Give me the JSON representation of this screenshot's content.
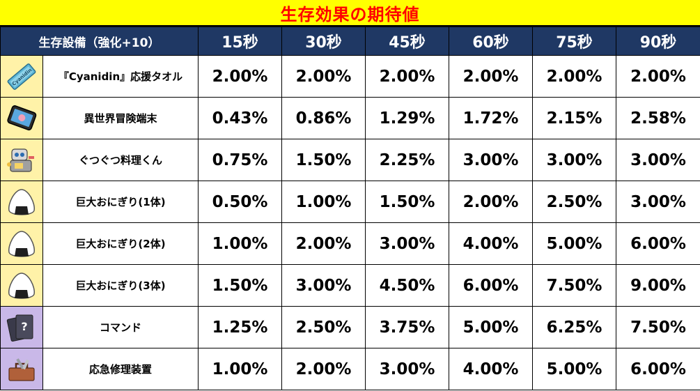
{
  "title": "生存効果の期待値",
  "header": {
    "equipment": "生存設備（強化+10）",
    "durations": [
      "15秒",
      "30秒",
      "45秒",
      "60秒",
      "75秒",
      "90秒"
    ]
  },
  "rows": [
    {
      "name": "『Cyanidin』応援タオル",
      "icon": "towel-icon",
      "values": [
        "2.00%",
        "2.00%",
        "2.00%",
        "2.00%",
        "2.00%",
        "2.00%"
      ]
    },
    {
      "name": "異世界冒険端末",
      "icon": "tablet-icon",
      "values": [
        "0.43%",
        "0.86%",
        "1.29%",
        "1.72%",
        "2.15%",
        "2.58%"
      ]
    },
    {
      "name": "ぐつぐつ料理くん",
      "icon": "cooking-robot-icon",
      "values": [
        "0.75%",
        "1.50%",
        "2.25%",
        "3.00%",
        "3.00%",
        "3.00%"
      ]
    },
    {
      "name": "巨大おにぎり(1体)",
      "icon": "onigiri-icon",
      "values": [
        "0.50%",
        "1.00%",
        "1.50%",
        "2.00%",
        "2.50%",
        "3.00%"
      ]
    },
    {
      "name": "巨大おにぎり(2体)",
      "icon": "onigiri-icon",
      "values": [
        "1.00%",
        "2.00%",
        "3.00%",
        "4.00%",
        "5.00%",
        "6.00%"
      ]
    },
    {
      "name": "巨大おにぎり(3体)",
      "icon": "onigiri-icon",
      "values": [
        "1.50%",
        "3.00%",
        "4.50%",
        "6.00%",
        "7.50%",
        "9.00%"
      ]
    },
    {
      "name": "コマンド",
      "icon": "command-cards-icon",
      "values": [
        "1.25%",
        "2.50%",
        "3.75%",
        "5.00%",
        "6.25%",
        "7.50%"
      ]
    },
    {
      "name": "応急修理装置",
      "icon": "toolbox-icon",
      "values": [
        "1.00%",
        "2.00%",
        "3.00%",
        "4.00%",
        "5.00%",
        "6.00%"
      ]
    }
  ],
  "colors": {
    "title_bg": "#ffff00",
    "title_text": "#ff0000",
    "header_bg": "#1f3864",
    "icon_bg_yellow": "#fff2a8",
    "icon_bg_purple": "#c9b8e8"
  }
}
